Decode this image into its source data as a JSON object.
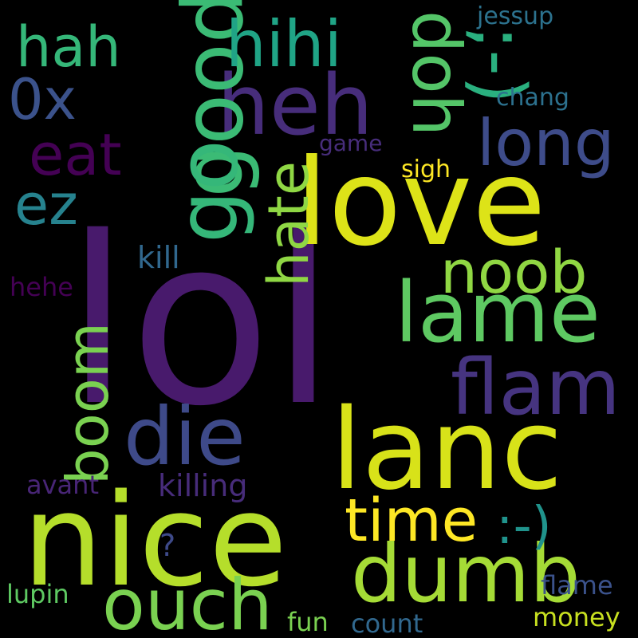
{
  "words": [
    {
      "text": "lol",
      "color": "#481a6c"
    },
    {
      "text": "nice",
      "color": "#b5de2b"
    },
    {
      "text": "love",
      "color": "#dde318"
    },
    {
      "text": "lanc",
      "color": "#d8e219"
    },
    {
      "text": "dumb",
      "color": "#a5db36"
    },
    {
      "text": "ouch",
      "color": "#7ad151"
    },
    {
      "text": "die",
      "color": "#3e4a89"
    },
    {
      "text": "lame",
      "color": "#5ec962"
    },
    {
      "text": "flam",
      "color": "#463480"
    },
    {
      "text": "heh",
      "color": "#472d7b"
    },
    {
      "text": "good",
      "color": "#3bbb75"
    },
    {
      "text": "go",
      "color": "#35b779"
    },
    {
      "text": "hihi",
      "color": "#20a486"
    },
    {
      "text": "doh",
      "color": "#54c568"
    },
    {
      "text": ";-)",
      "color": "#2ab07f"
    },
    {
      "text": "hah",
      "color": "#35b779"
    },
    {
      "text": "0x",
      "color": "#3b528b"
    },
    {
      "text": "long",
      "color": "#3e4c8a"
    },
    {
      "text": "eat",
      "color": "#440154"
    },
    {
      "text": "ez",
      "color": "#26828e"
    },
    {
      "text": "hate",
      "color": "#8fd744"
    },
    {
      "text": "noob",
      "color": "#90d743"
    },
    {
      "text": "time",
      "color": "#fde725"
    },
    {
      "text": ":-)",
      "color": "#20938c"
    },
    {
      "text": "boom",
      "color": "#7ad151"
    },
    {
      "text": "killing",
      "color": "#472c7a"
    },
    {
      "text": "kill",
      "color": "#31688e"
    },
    {
      "text": "hehe",
      "color": "#440154"
    },
    {
      "text": "avant",
      "color": "#482576"
    },
    {
      "text": "?",
      "color": "#3e4a89"
    },
    {
      "text": "lupin",
      "color": "#5ec962"
    },
    {
      "text": "fun",
      "color": "#7ad151"
    },
    {
      "text": "count",
      "color": "#31688e"
    },
    {
      "text": "money",
      "color": "#c8e020"
    },
    {
      "text": "flame",
      "color": "#3b528b"
    },
    {
      "text": "jessup",
      "color": "#2c728e"
    },
    {
      "text": "chang",
      "color": "#2c718e"
    },
    {
      "text": "game",
      "color": "#472d7b"
    },
    {
      "text": "sigh",
      "color": "#fde725"
    }
  ]
}
